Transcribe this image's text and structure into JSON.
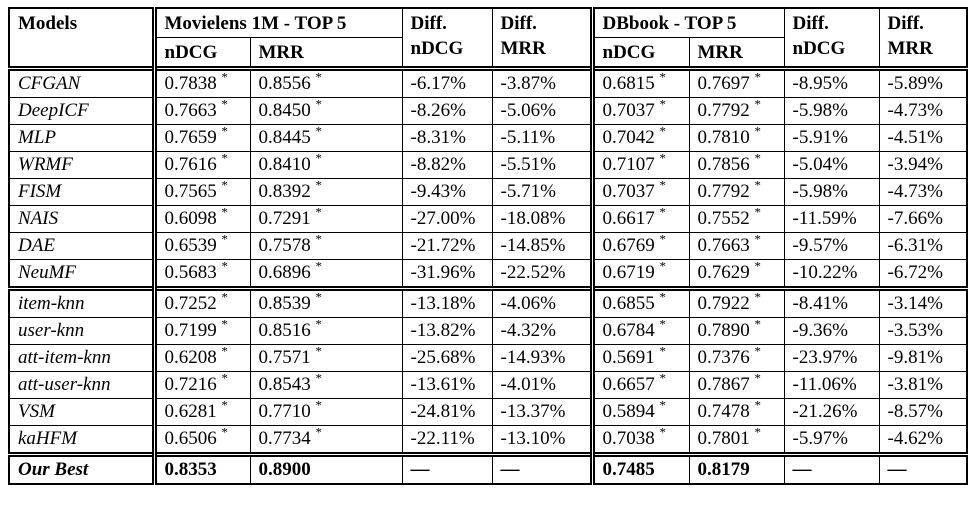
{
  "table": {
    "header": {
      "models": "Models",
      "movielens_group": "Movielens 1M - TOP 5",
      "dbbook_group": "DBbook - TOP 5",
      "ndcg": "nDCG",
      "mrr": "MRR",
      "diff": "Diff."
    },
    "groups": [
      {
        "rows": [
          {
            "model": "CFGAN",
            "values": [
              "0.7838 *",
              "0.8556 *",
              "-6.17%",
              "-3.87%",
              "0.6815 *",
              "0.7697 *",
              "-8.95%",
              "-5.89%"
            ]
          },
          {
            "model": "DeepICF",
            "values": [
              "0.7663 *",
              "0.8450 *",
              "-8.26%",
              "-5.06%",
              "0.7037 *",
              "0.7792 *",
              "-5.98%",
              "-4.73%"
            ]
          },
          {
            "model": "MLP",
            "values": [
              "0.7659 *",
              "0.8445 *",
              "-8.31%",
              "-5.11%",
              "0.7042 *",
              "0.7810 *",
              "-5.91%",
              "-4.51%"
            ]
          },
          {
            "model": "WRMF",
            "values": [
              "0.7616 *",
              "0.8410 *",
              "-8.82%",
              "-5.51%",
              "0.7107 *",
              "0.7856 *",
              "-5.04%",
              "-3.94%"
            ]
          },
          {
            "model": "FISM",
            "values": [
              "0.7565 *",
              "0.8392 *",
              "-9.43%",
              "-5.71%",
              "0.7037 *",
              "0.7792 *",
              "-5.98%",
              "-4.73%"
            ]
          },
          {
            "model": "NAIS",
            "values": [
              "0.6098 *",
              "0.7291 *",
              "-27.00%",
              "-18.08%",
              "0.6617 *",
              "0.7552 *",
              "-11.59%",
              "-7.66%"
            ]
          },
          {
            "model": "DAE",
            "values": [
              "0.6539 *",
              "0.7578 *",
              "-21.72%",
              "-14.85%",
              "0.6769 *",
              "0.7663 *",
              "-9.57%",
              "-6.31%"
            ]
          },
          {
            "model": "NeuMF",
            "values": [
              "0.5683 *",
              "0.6896 *",
              "-31.96%",
              "-22.52%",
              "0.6719 *",
              "0.7629 *",
              "-10.22%",
              "-6.72%"
            ]
          }
        ]
      },
      {
        "rows": [
          {
            "model": "item-knn",
            "values": [
              "0.7252 *",
              "0.8539 *",
              "-13.18%",
              "-4.06%",
              "0.6855 *",
              "0.7922 *",
              "-8.41%",
              "-3.14%"
            ]
          },
          {
            "model": "user-knn",
            "values": [
              "0.7199 *",
              "0.8516 *",
              "-13.82%",
              "-4.32%",
              "0.6784 *",
              "0.7890 *",
              "-9.36%",
              "-3.53%"
            ]
          },
          {
            "model": "att-item-knn",
            "values": [
              "0.6208 *",
              "0.7571 *",
              "-25.68%",
              "-14.93%",
              "0.5691 *",
              "0.7376 *",
              "-23.97%",
              "-9.81%"
            ]
          },
          {
            "model": "att-user-knn",
            "values": [
              "0.7216 *",
              "0.8543 *",
              "-13.61%",
              "-4.01%",
              "0.6657 *",
              "0.7867 *",
              "-11.06%",
              "-3.81%"
            ]
          },
          {
            "model": "VSM",
            "values": [
              "0.6281 *",
              "0.7710 *",
              "-24.81%",
              "-13.37%",
              "0.5894 *",
              "0.7478 *",
              "-21.26%",
              "-8.57%"
            ]
          },
          {
            "model": "kaHFM",
            "values": [
              "0.6506 *",
              "0.7734 *",
              "-22.11%",
              "-13.10%",
              "0.7038 *",
              "0.7801 *",
              "-5.97%",
              "-4.62%"
            ]
          }
        ]
      },
      {
        "rows": [
          {
            "model": "Our Best",
            "bold": true,
            "values": [
              "0.8353",
              "0.8900",
              "—",
              "—",
              "0.7485",
              "0.8179",
              "—",
              "—"
            ]
          }
        ]
      }
    ]
  }
}
